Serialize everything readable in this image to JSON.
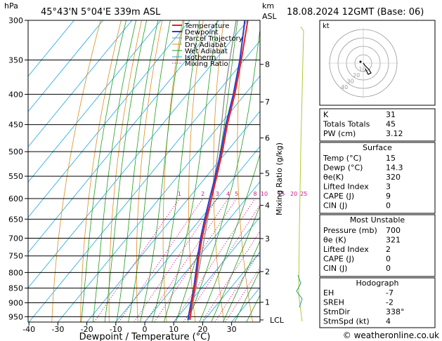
{
  "header": {
    "pressure_unit": "hPa",
    "location": "45°43'N  5°04'E  339m  ASL",
    "km_label": "km",
    "asl_label": "ASL",
    "datetime": "18.08.2024  12GMT  (Base: 06)"
  },
  "legend": [
    {
      "label": "Temperature",
      "color": "#e8221a"
    },
    {
      "label": "Dewpoint",
      "color": "#2a3ad6"
    },
    {
      "label": "Parcel Trajectory",
      "color": "#8c8c8c"
    },
    {
      "label": "Dry Adiabat",
      "color": "#e08c1c"
    },
    {
      "label": "Wet Adiabat",
      "color": "#1f9e1f"
    },
    {
      "label": "Isotherm",
      "color": "#18a9e0"
    },
    {
      "label": "Mixing Ratio",
      "color": "#d2148c"
    }
  ],
  "chart_data": {
    "type": "line",
    "title": "Skew-T log-P diagram",
    "xlabel": "Dewpoint / Temperature (°C)",
    "ylabel": "hPa",
    "x_ticks": [
      -40,
      -30,
      -20,
      -10,
      0,
      10,
      20,
      30
    ],
    "pressure_levels": [
      300,
      350,
      400,
      450,
      500,
      550,
      600,
      650,
      700,
      750,
      800,
      850,
      900,
      950
    ],
    "plim": [
      300,
      970
    ],
    "height_km_ticks": [
      {
        "label": "8",
        "p": 356
      },
      {
        "label": "7",
        "p": 412
      },
      {
        "label": "6",
        "p": 474
      },
      {
        "label": "5",
        "p": 544
      },
      {
        "label": "4",
        "p": 616
      },
      {
        "label": "3",
        "p": 701
      },
      {
        "label": "2",
        "p": 797
      },
      {
        "label": "1",
        "p": 898
      }
    ],
    "lcl_label": "LCL",
    "lcl_p": 962,
    "mixing_ratio_axis_label": "Mixing Ratio (g/kg)",
    "mixing_ratio_labels": [
      "1",
      "2",
      "3",
      "4",
      "5",
      "8",
      "10",
      "15",
      "20",
      "25"
    ],
    "mixing_ratio_values": [
      1,
      2,
      3,
      4,
      5,
      8,
      10,
      15,
      20,
      25
    ],
    "series": [
      {
        "name": "Temperature",
        "points": [
          [
            962,
            15
          ],
          [
            900,
            10.8
          ],
          [
            850,
            7.6
          ],
          [
            800,
            4
          ],
          [
            750,
            0
          ],
          [
            700,
            -4
          ],
          [
            650,
            -8
          ],
          [
            600,
            -12
          ],
          [
            550,
            -16.5
          ],
          [
            500,
            -21.5
          ],
          [
            450,
            -27.5
          ],
          [
            400,
            -33.5
          ],
          [
            350,
            -41
          ],
          [
            300,
            -50
          ]
        ]
      },
      {
        "name": "Dewpoint",
        "points": [
          [
            962,
            14.3
          ],
          [
            900,
            10.5
          ],
          [
            850,
            7.3
          ],
          [
            800,
            3.6
          ],
          [
            750,
            -0.4
          ],
          [
            700,
            -4.5
          ],
          [
            650,
            -8.5
          ],
          [
            600,
            -12.6
          ],
          [
            550,
            -17
          ],
          [
            500,
            -22
          ],
          [
            450,
            -28
          ],
          [
            400,
            -34
          ],
          [
            350,
            -41.5
          ],
          [
            300,
            -51
          ]
        ]
      },
      {
        "name": "Parcel Trajectory",
        "points": [
          [
            962,
            15
          ],
          [
            900,
            11.2
          ],
          [
            850,
            8
          ],
          [
            800,
            4.5
          ],
          [
            750,
            0.8
          ],
          [
            700,
            -3.2
          ],
          [
            650,
            -7.5
          ],
          [
            600,
            -12
          ],
          [
            550,
            -17.2
          ],
          [
            500,
            -23
          ],
          [
            450,
            -29.5
          ],
          [
            400,
            -37
          ],
          [
            350,
            -45
          ],
          [
            300,
            -54
          ]
        ]
      }
    ]
  },
  "hodograph": {
    "unit_label": "kt",
    "ring_labels": [
      "10",
      "20",
      "30",
      "40"
    ],
    "trace": [
      [
        0,
        0
      ],
      [
        1,
        -2
      ],
      [
        3,
        -4
      ],
      [
        5,
        -6
      ],
      [
        6,
        -9
      ],
      [
        3,
        -6
      ],
      [
        2,
        -3
      ]
    ]
  },
  "indices": {
    "rows": [
      {
        "label": "K",
        "value": "31"
      },
      {
        "label": "Totals Totals",
        "value": "45"
      },
      {
        "label": "PW (cm)",
        "value": "3.12"
      }
    ]
  },
  "surface": {
    "title": "Surface",
    "rows": [
      {
        "label": "Temp (°C)",
        "value": "15"
      },
      {
        "label": "Dewp (°C)",
        "value": "14.3"
      },
      {
        "label": "θe(K)",
        "value": "320"
      },
      {
        "label": "Lifted Index",
        "value": "3"
      },
      {
        "label": "CAPE (J)",
        "value": "9"
      },
      {
        "label": "CIN (J)",
        "value": "0"
      }
    ]
  },
  "most_unstable": {
    "title": "Most Unstable",
    "rows": [
      {
        "label": "Pressure (mb)",
        "value": "700"
      },
      {
        "label": "θe (K)",
        "value": "321"
      },
      {
        "label": "Lifted Index",
        "value": "2"
      },
      {
        "label": "CAPE (J)",
        "value": "0"
      },
      {
        "label": "CIN (J)",
        "value": "0"
      }
    ]
  },
  "hodograph_table": {
    "title": "Hodograph",
    "rows": [
      {
        "label": "EH",
        "value": "-7"
      },
      {
        "label": "SREH",
        "value": "-2"
      },
      {
        "label": "StmDir",
        "value": "338°"
      },
      {
        "label": "StmSpd (kt)",
        "value": "4"
      }
    ]
  },
  "copyright": "© weatheronline.co.uk"
}
